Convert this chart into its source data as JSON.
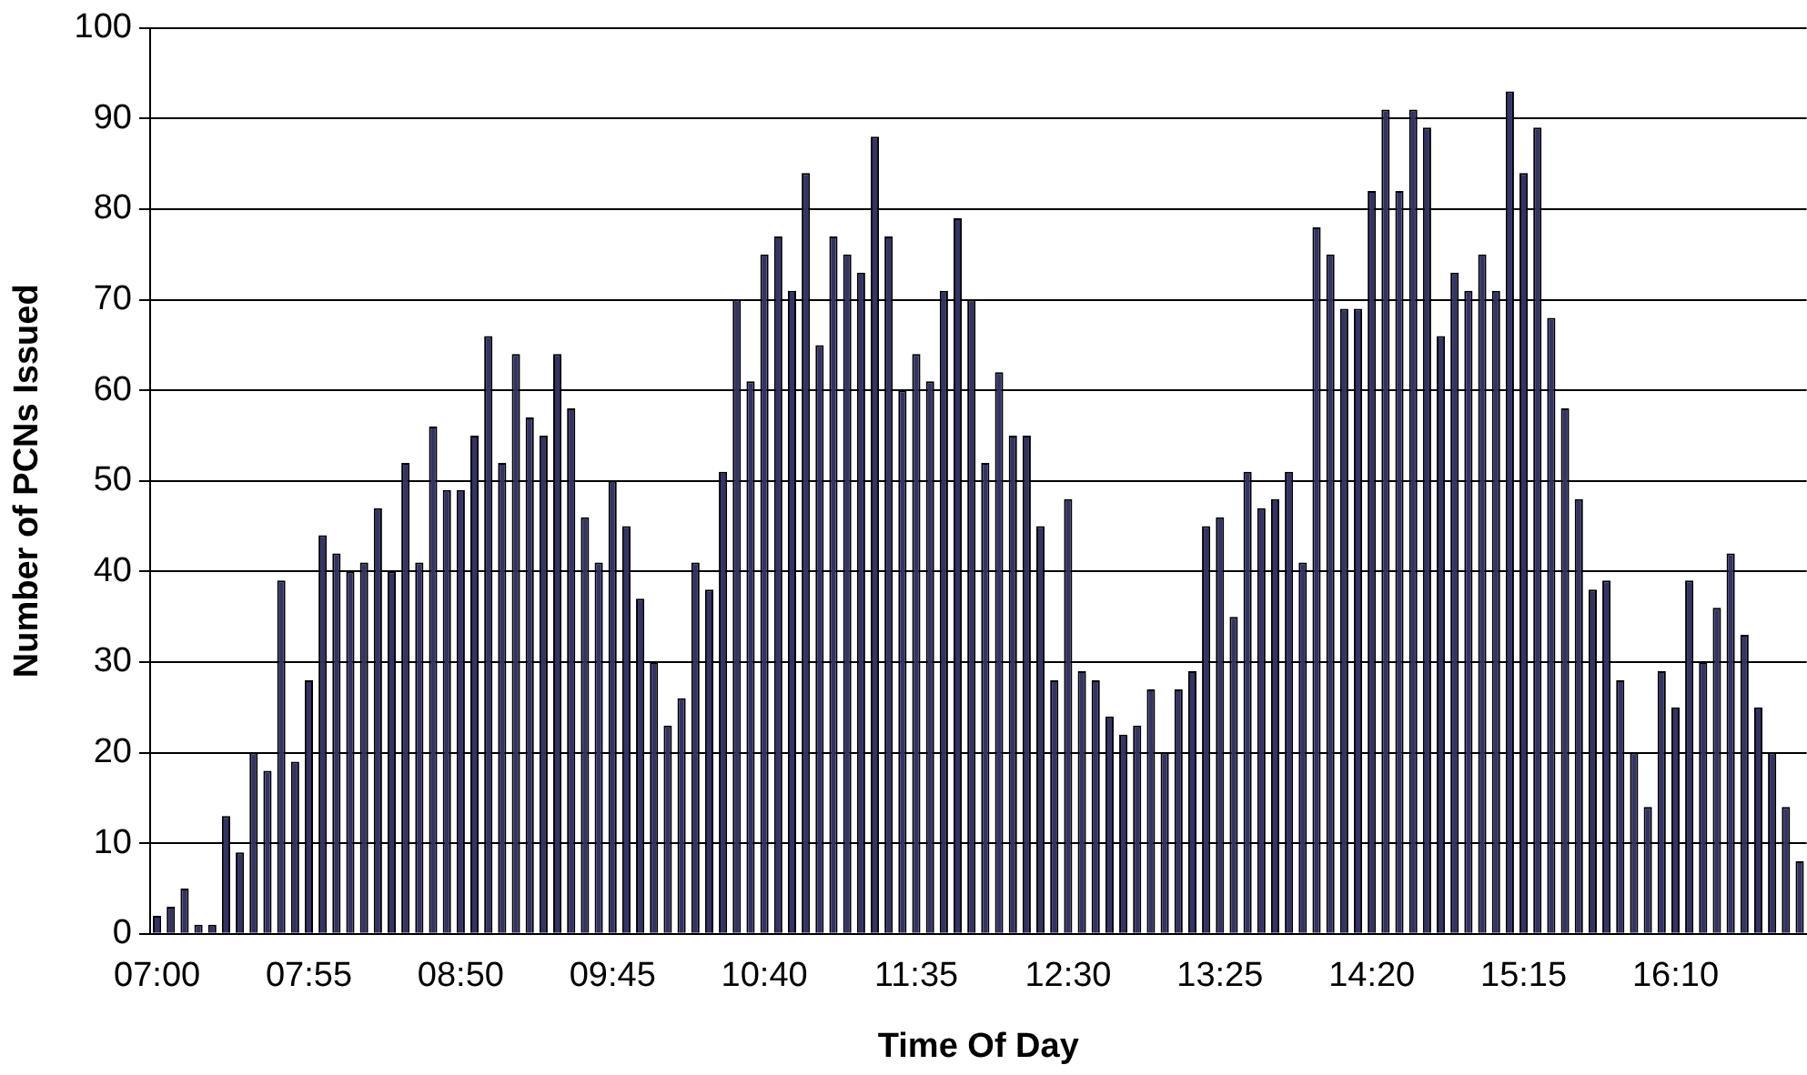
{
  "chart_data": {
    "type": "bar",
    "xlabel": "Time Of Day",
    "ylabel": "Number of PCNs Issued",
    "categories": [
      "07:00",
      null,
      null,
      null,
      null,
      null,
      null,
      null,
      null,
      null,
      null,
      "07:55",
      null,
      null,
      null,
      null,
      null,
      null,
      null,
      null,
      null,
      null,
      "08:50",
      null,
      null,
      null,
      null,
      null,
      null,
      null,
      null,
      null,
      null,
      "09:45",
      null,
      null,
      null,
      null,
      null,
      null,
      null,
      null,
      null,
      null,
      "10:40",
      null,
      null,
      null,
      null,
      null,
      null,
      null,
      null,
      null,
      null,
      "11:35",
      null,
      null,
      null,
      null,
      null,
      null,
      null,
      null,
      null,
      null,
      "12:30",
      null,
      null,
      null,
      null,
      null,
      null,
      null,
      null,
      null,
      null,
      "13:25",
      null,
      null,
      null,
      null,
      null,
      null,
      null,
      null,
      null,
      null,
      "14:20",
      null,
      null,
      null,
      null,
      null,
      null,
      null,
      null,
      null,
      null,
      "15:15",
      null,
      null,
      null,
      null,
      null,
      null,
      null,
      null,
      null,
      null,
      "16:10",
      null,
      null,
      null,
      null,
      null,
      null,
      null,
      null,
      null
    ],
    "values": [
      2,
      3,
      5,
      1,
      1,
      13,
      9,
      20,
      18,
      39,
      19,
      28,
      44,
      42,
      40,
      41,
      47,
      40,
      52,
      41,
      56,
      49,
      49,
      55,
      66,
      52,
      64,
      57,
      55,
      64,
      58,
      46,
      41,
      50,
      45,
      37,
      30,
      23,
      26,
      41,
      38,
      51,
      70,
      61,
      75,
      77,
      71,
      84,
      65,
      77,
      75,
      73,
      88,
      77,
      60,
      64,
      61,
      71,
      79,
      70,
      52,
      62,
      55,
      55,
      45,
      28,
      48,
      29,
      28,
      24,
      22,
      23,
      27,
      20,
      27,
      29,
      45,
      46,
      35,
      51,
      47,
      48,
      51,
      41,
      78,
      75,
      69,
      69,
      82,
      91,
      82,
      91,
      89,
      66,
      73,
      71,
      75,
      71,
      93,
      84,
      89,
      68,
      58,
      48,
      38,
      39,
      28,
      20,
      14,
      29,
      25,
      39,
      30,
      36,
      42,
      33,
      25,
      20,
      14,
      8
    ],
    "color": "#333366",
    "ylim": [
      0,
      100
    ],
    "yticks": [
      0,
      10,
      20,
      30,
      40,
      50,
      60,
      70,
      80,
      90,
      100
    ],
    "grid": "y",
    "legend": false
  }
}
